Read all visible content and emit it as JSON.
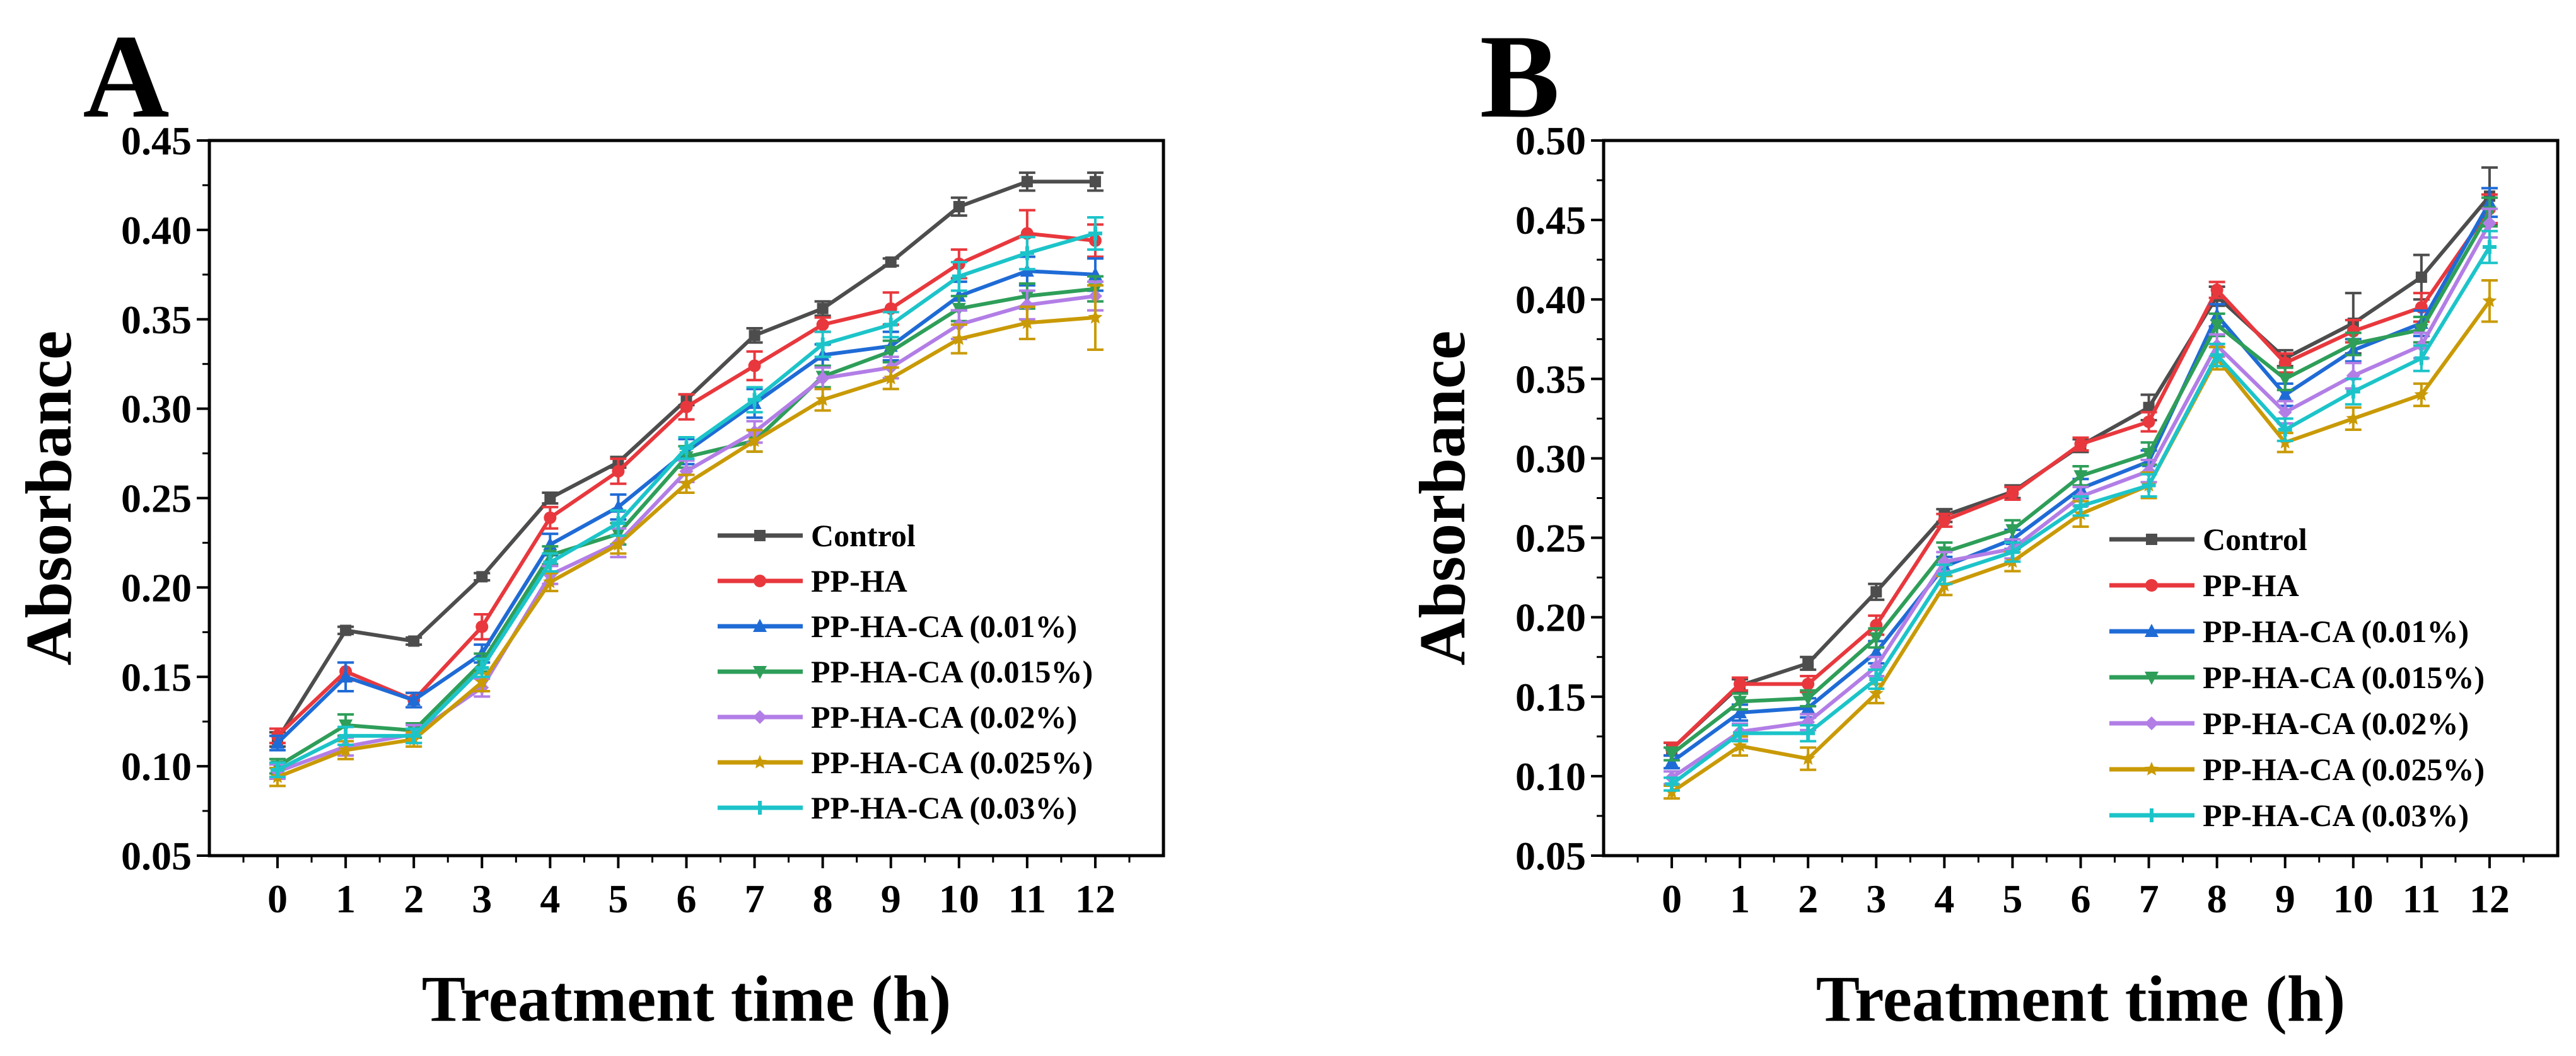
{
  "figure": {
    "panels": [
      "A",
      "B"
    ]
  },
  "chart_data": [
    {
      "type": "line",
      "panel_label": "A",
      "title": "",
      "xlabel": "Treatment time (h)",
      "ylabel": "Absorbance",
      "x": [
        0,
        1,
        2,
        3,
        4,
        5,
        6,
        7,
        8,
        9,
        10,
        11,
        12
      ],
      "xlim": [
        -1,
        13
      ],
      "ylim": [
        0.05,
        0.45
      ],
      "yticks": [
        0.05,
        0.1,
        0.15,
        0.2,
        0.25,
        0.3,
        0.35,
        0.4,
        0.45
      ],
      "ytick_labels": [
        "0.05",
        "0.10",
        "0.15",
        "0.20",
        "0.25",
        "0.30",
        "0.35",
        "0.40",
        "0.45"
      ],
      "xtick_labels": [
        "0",
        "1",
        "2",
        "3",
        "4",
        "5",
        "6",
        "7",
        "8",
        "9",
        "10",
        "11",
        "12"
      ],
      "legend_position": "lower-right",
      "series": [
        {
          "name": "Control",
          "color": "#4d4d4d",
          "marker": "square",
          "values": [
            0.115,
            0.176,
            0.17,
            0.206,
            0.25,
            0.27,
            0.305,
            0.341,
            0.356,
            0.382,
            0.413,
            0.427,
            0.427
          ],
          "errors": [
            0.004,
            0.002,
            0.002,
            0.002,
            0.003,
            0.003,
            0.003,
            0.004,
            0.004,
            0.002,
            0.005,
            0.005,
            0.005
          ]
        },
        {
          "name": "PP-HA",
          "color": "#e8383d",
          "marker": "circle",
          "values": [
            0.117,
            0.153,
            0.137,
            0.178,
            0.239,
            0.265,
            0.301,
            0.324,
            0.347,
            0.356,
            0.381,
            0.398,
            0.394
          ],
          "errors": [
            0.004,
            0.005,
            0.004,
            0.007,
            0.006,
            0.007,
            0.007,
            0.008,
            0.004,
            0.009,
            0.008,
            0.013,
            0.009
          ]
        },
        {
          "name": "PP-HA-CA (0.01%)",
          "color": "#1f6bd6",
          "marker": "triangle",
          "values": [
            0.113,
            0.15,
            0.137,
            0.163,
            0.224,
            0.245,
            0.276,
            0.303,
            0.33,
            0.335,
            0.363,
            0.377,
            0.375
          ],
          "errors": [
            0.004,
            0.008,
            0.004,
            0.005,
            0.006,
            0.007,
            0.007,
            0.008,
            0.006,
            0.008,
            0.008,
            0.008,
            0.009
          ]
        },
        {
          "name": "PP-HA-CA (0.015%)",
          "color": "#2e9e59",
          "marker": "tri-down",
          "values": [
            0.1,
            0.123,
            0.12,
            0.158,
            0.218,
            0.23,
            0.273,
            0.282,
            0.318,
            0.332,
            0.356,
            0.363,
            0.367
          ],
          "errors": [
            0.004,
            0.006,
            0.004,
            0.005,
            0.005,
            0.006,
            0.006,
            0.006,
            0.006,
            0.006,
            0.007,
            0.007,
            0.007
          ]
        },
        {
          "name": "PP-HA-CA (0.02%)",
          "color": "#b27ee6",
          "marker": "diamond",
          "values": [
            0.097,
            0.111,
            0.118,
            0.144,
            0.207,
            0.225,
            0.265,
            0.287,
            0.317,
            0.323,
            0.347,
            0.358,
            0.363
          ],
          "errors": [
            0.004,
            0.005,
            0.005,
            0.005,
            0.005,
            0.008,
            0.006,
            0.006,
            0.006,
            0.006,
            0.008,
            0.008,
            0.008
          ]
        },
        {
          "name": "PP-HA-CA (0.025%)",
          "color": "#c99a06",
          "marker": "star",
          "values": [
            0.094,
            0.109,
            0.115,
            0.147,
            0.203,
            0.224,
            0.258,
            0.282,
            0.305,
            0.317,
            0.339,
            0.348,
            0.351
          ],
          "errors": [
            0.005,
            0.005,
            0.004,
            0.005,
            0.005,
            0.005,
            0.005,
            0.006,
            0.006,
            0.006,
            0.008,
            0.009,
            0.018
          ]
        },
        {
          "name": "PP-HA-CA (0.03%)",
          "color": "#1cc4c9",
          "marker": "cross",
          "values": [
            0.098,
            0.117,
            0.117,
            0.155,
            0.214,
            0.236,
            0.278,
            0.305,
            0.336,
            0.347,
            0.374,
            0.387,
            0.398
          ],
          "errors": [
            0.004,
            0.005,
            0.004,
            0.005,
            0.005,
            0.007,
            0.006,
            0.007,
            0.007,
            0.007,
            0.008,
            0.009,
            0.009
          ]
        }
      ]
    },
    {
      "type": "line",
      "panel_label": "B",
      "title": "",
      "xlabel": "Treatment time (h)",
      "ylabel": "Absorbance",
      "x": [
        0,
        1,
        2,
        3,
        4,
        5,
        6,
        7,
        8,
        9,
        10,
        11,
        12
      ],
      "xlim": [
        -1,
        13
      ],
      "ylim": [
        0.05,
        0.5
      ],
      "yticks": [
        0.05,
        0.1,
        0.15,
        0.2,
        0.25,
        0.3,
        0.35,
        0.4,
        0.45,
        0.5
      ],
      "ytick_labels": [
        "0.05",
        "0.10",
        "0.15",
        "0.20",
        "0.25",
        "0.30",
        "0.35",
        "0.40",
        "0.45",
        "0.50"
      ],
      "xtick_labels": [
        "0",
        "1",
        "2",
        "3",
        "4",
        "5",
        "6",
        "7",
        "8",
        "9",
        "10",
        "11",
        "12"
      ],
      "legend_position": "lower-right",
      "series": [
        {
          "name": "Control",
          "color": "#4d4d4d",
          "marker": "square",
          "values": [
            0.117,
            0.157,
            0.171,
            0.216,
            0.264,
            0.279,
            0.308,
            0.332,
            0.402,
            0.363,
            0.385,
            0.414,
            0.465
          ],
          "errors": [
            0.004,
            0.004,
            0.004,
            0.005,
            0.004,
            0.004,
            0.004,
            0.008,
            0.006,
            0.005,
            0.019,
            0.014,
            0.018
          ]
        },
        {
          "name": "PP-HA",
          "color": "#e8383d",
          "marker": "circle",
          "values": [
            0.117,
            0.158,
            0.158,
            0.195,
            0.261,
            0.278,
            0.309,
            0.323,
            0.406,
            0.36,
            0.38,
            0.395,
            0.457
          ],
          "errors": [
            0.004,
            0.004,
            0.005,
            0.006,
            0.004,
            0.004,
            0.004,
            0.006,
            0.005,
            0.006,
            0.007,
            0.009,
            0.009
          ]
        },
        {
          "name": "PP-HA-CA (0.01%)",
          "color": "#1f6bd6",
          "marker": "triangle",
          "values": [
            0.109,
            0.14,
            0.143,
            0.178,
            0.232,
            0.249,
            0.281,
            0.298,
            0.39,
            0.34,
            0.368,
            0.385,
            0.461
          ],
          "errors": [
            0.004,
            0.005,
            0.006,
            0.007,
            0.006,
            0.006,
            0.006,
            0.007,
            0.007,
            0.007,
            0.007,
            0.008,
            0.009
          ]
        },
        {
          "name": "PP-HA-CA (0.015%)",
          "color": "#2e9e59",
          "marker": "tri-down",
          "values": [
            0.114,
            0.147,
            0.149,
            0.187,
            0.241,
            0.255,
            0.289,
            0.303,
            0.384,
            0.35,
            0.372,
            0.381,
            0.455
          ],
          "errors": [
            0.004,
            0.005,
            0.005,
            0.006,
            0.006,
            0.006,
            0.006,
            0.007,
            0.007,
            0.007,
            0.007,
            0.008,
            0.009
          ]
        },
        {
          "name": "PP-HA-CA (0.02%)",
          "color": "#b27ee6",
          "marker": "diamond",
          "values": [
            0.099,
            0.128,
            0.134,
            0.169,
            0.235,
            0.243,
            0.276,
            0.292,
            0.371,
            0.329,
            0.352,
            0.371,
            0.448
          ],
          "errors": [
            0.004,
            0.005,
            0.005,
            0.006,
            0.006,
            0.006,
            0.006,
            0.007,
            0.007,
            0.007,
            0.008,
            0.008,
            0.009
          ]
        },
        {
          "name": "PP-HA-CA (0.025%)",
          "color": "#c99a06",
          "marker": "star",
          "values": [
            0.09,
            0.119,
            0.111,
            0.152,
            0.22,
            0.235,
            0.265,
            0.283,
            0.363,
            0.31,
            0.325,
            0.34,
            0.399
          ],
          "errors": [
            0.004,
            0.006,
            0.007,
            0.006,
            0.006,
            0.006,
            0.008,
            0.008,
            0.007,
            0.006,
            0.007,
            0.007,
            0.013
          ]
        },
        {
          "name": "PP-HA-CA (0.03%)",
          "color": "#1cc4c9",
          "marker": "cross",
          "values": [
            0.095,
            0.127,
            0.127,
            0.161,
            0.227,
            0.241,
            0.27,
            0.283,
            0.365,
            0.318,
            0.342,
            0.363,
            0.433
          ],
          "errors": [
            0.004,
            0.005,
            0.005,
            0.006,
            0.006,
            0.006,
            0.006,
            0.007,
            0.007,
            0.007,
            0.008,
            0.008,
            0.01
          ]
        }
      ]
    }
  ]
}
